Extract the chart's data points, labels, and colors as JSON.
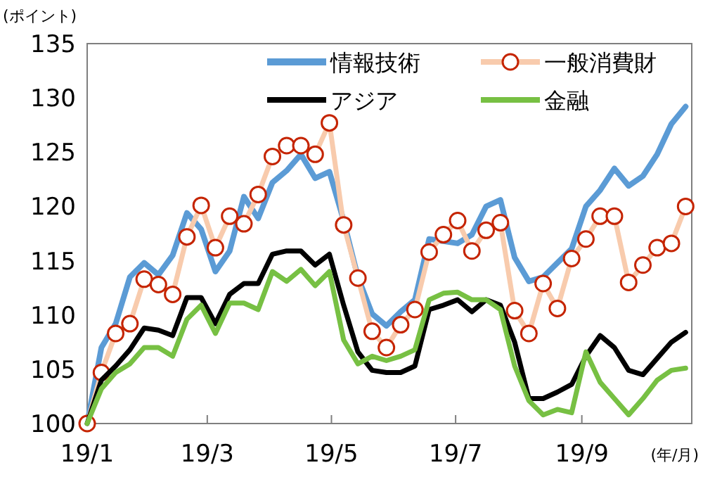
{
  "chart_data": {
    "type": "line",
    "ylabel": "(ポイント)",
    "xlabel": "(年/月)",
    "x": [
      "--01-01",
      "--01-08",
      "--01-15",
      "--01-22",
      "--01-29",
      "--02-05",
      "--02-12",
      "--02-19",
      "--02-26",
      "--03-05",
      "--03-12",
      "--03-19",
      "--03-26",
      "--04-02",
      "--04-09",
      "--04-16",
      "--04-23",
      "--04-30",
      "--05-07",
      "--05-14",
      "--05-21",
      "--05-28",
      "--06-04",
      "--06-11",
      "--06-18",
      "--06-25",
      "--07-02",
      "--07-09",
      "--07-16",
      "--07-23",
      "--07-30",
      "--08-06",
      "--08-13",
      "--08-20",
      "--08-27",
      "--09-03",
      "--09-10",
      "--09-17",
      "--09-24",
      "--10-01",
      "--10-08",
      "--10-15",
      "--10-22"
    ],
    "xlim": [
      "--01-01",
      "--10-25"
    ],
    "xticks": [
      {
        "value": "--01-01",
        "label": "19/1"
      },
      {
        "value": "--03-01",
        "label": "19/3"
      },
      {
        "value": "--05-01",
        "label": "19/5"
      },
      {
        "value": "--07-01",
        "label": "19/7"
      },
      {
        "value": "--09-01",
        "label": "19/9"
      }
    ],
    "ylim": [
      100,
      135
    ],
    "yticks": [
      100,
      105,
      110,
      115,
      120,
      125,
      130,
      135
    ],
    "legend": "top right",
    "grid": false,
    "series": [
      {
        "name": "情報技術",
        "color": "#5b9bd5",
        "marker": "none",
        "values": [
          100,
          107.0,
          109.2,
          113.5,
          114.8,
          113.7,
          115.5,
          119.4,
          117.9,
          114.0,
          115.9,
          120.9,
          118.9,
          122.2,
          123.3,
          124.8,
          122.6,
          123.2,
          118.7,
          113.5,
          110.1,
          109.0,
          110.3,
          111.4,
          117.0,
          116.8,
          116.6,
          117.4,
          120.0,
          120.6,
          115.3,
          113.1,
          113.5,
          114.8,
          116.1,
          120.0,
          121.5,
          123.5,
          121.9,
          122.8,
          124.8,
          127.6,
          129.2
        ]
      },
      {
        "name": "一般消費財",
        "color": "#f8cbad",
        "marker": "circle",
        "values": [
          100,
          104.7,
          108.3,
          109.2,
          113.3,
          112.8,
          111.9,
          117.2,
          120.1,
          116.2,
          119.1,
          118.4,
          121.1,
          124.6,
          125.6,
          125.6,
          124.8,
          127.7,
          118.3,
          113.4,
          108.5,
          107.0,
          109.1,
          110.5,
          115.8,
          117.4,
          118.7,
          115.9,
          117.8,
          118.5,
          110.4,
          108.3,
          112.9,
          110.6,
          115.2,
          117.0,
          119.1,
          119.1,
          113.0,
          114.6,
          116.2,
          116.6,
          120.0
        ]
      },
      {
        "name": "アジア",
        "color": "#000000",
        "marker": "none",
        "values": [
          100,
          104.0,
          105.3,
          106.8,
          108.8,
          108.6,
          108.1,
          111.6,
          111.6,
          109.2,
          111.9,
          112.9,
          112.9,
          115.6,
          115.9,
          115.9,
          114.6,
          115.6,
          110.9,
          106.6,
          104.9,
          104.7,
          104.7,
          105.3,
          110.5,
          110.9,
          111.4,
          110.3,
          111.4,
          110.9,
          107.5,
          102.3,
          102.3,
          102.9,
          103.6,
          106.2,
          108.1,
          107.0,
          104.9,
          104.5,
          106.0,
          107.5,
          108.4
        ]
      },
      {
        "name": "金融",
        "color": "#77c043",
        "marker": "none",
        "values": [
          100,
          103.2,
          104.7,
          105.5,
          107.0,
          107.0,
          106.2,
          109.6,
          110.9,
          108.3,
          111.1,
          111.1,
          110.5,
          114.0,
          113.1,
          114.2,
          112.7,
          114.0,
          107.7,
          105.5,
          106.2,
          105.8,
          106.2,
          106.8,
          111.4,
          112.0,
          112.1,
          111.4,
          111.4,
          110.5,
          105.3,
          102.1,
          100.8,
          101.3,
          101.0,
          106.6,
          103.8,
          102.3,
          100.8,
          102.3,
          104.0,
          104.9,
          105.1
        ]
      }
    ]
  }
}
